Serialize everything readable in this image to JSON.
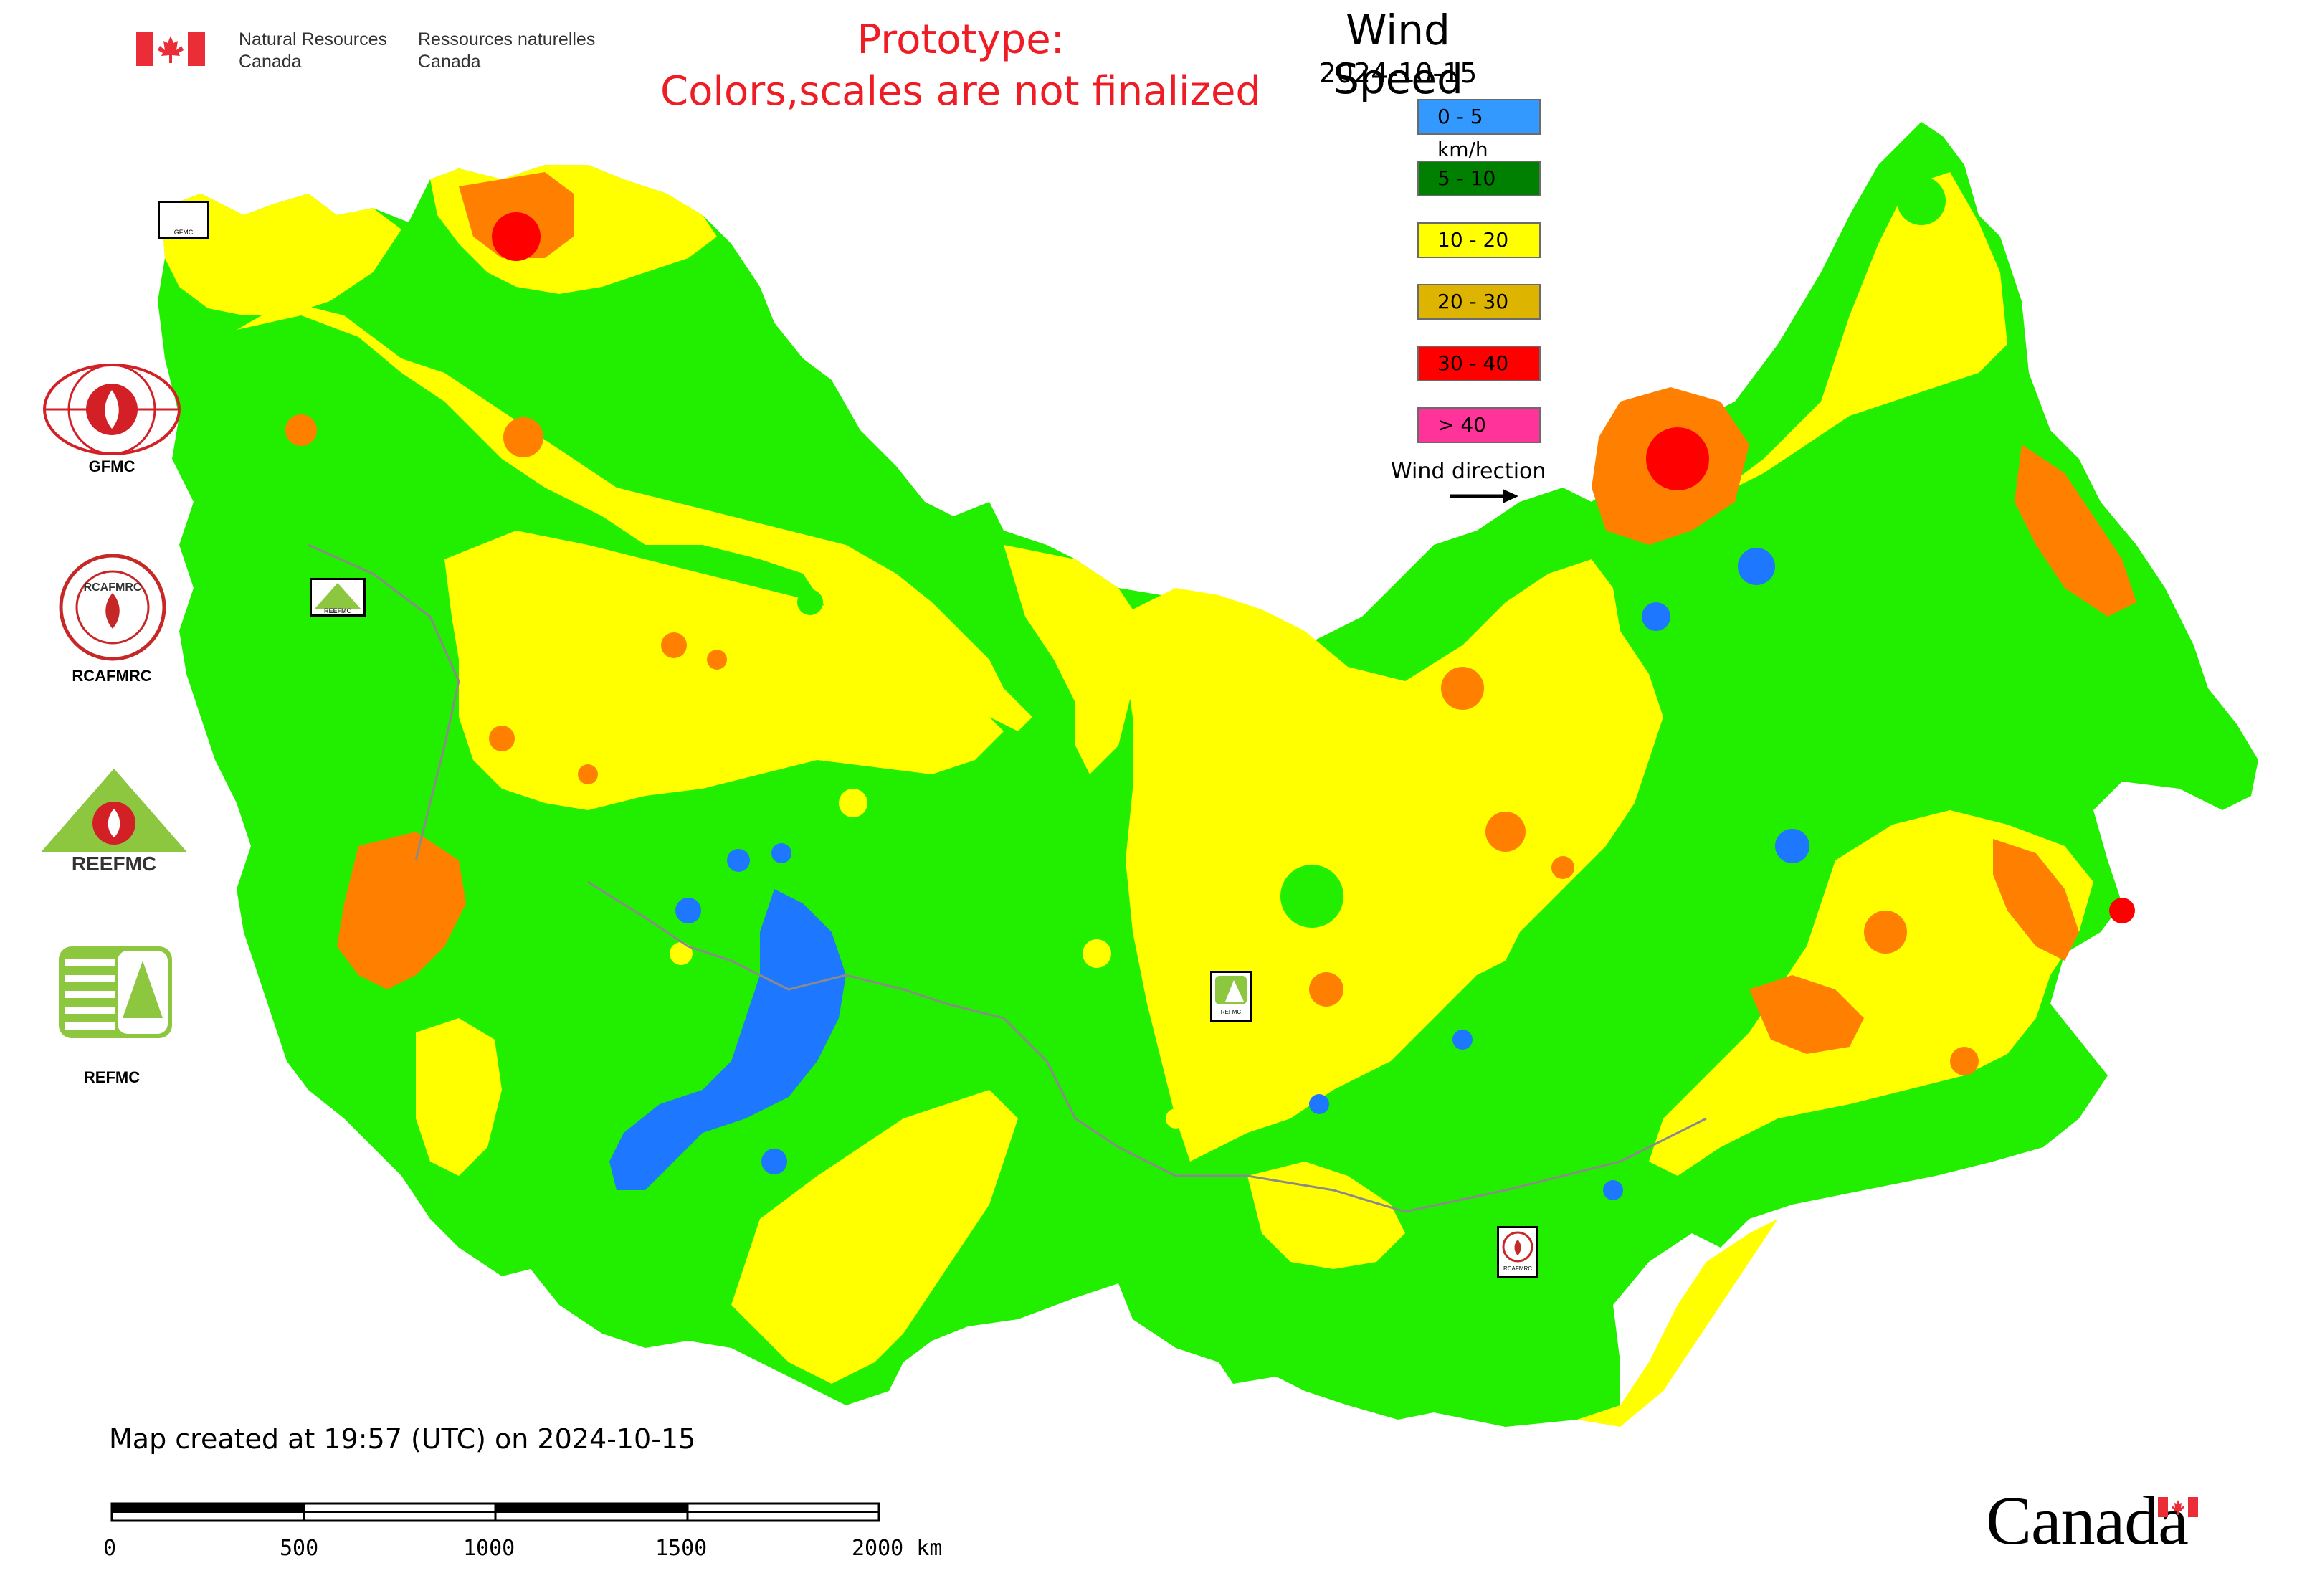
{
  "header": {
    "dept_en_line1": "Natural Resources",
    "dept_en_line2": "Canada",
    "dept_fr_line1": "Ressources naturelles",
    "dept_fr_line2": "Canada",
    "prototype_line1": "Prototype:",
    "prototype_line2": "Colors,scales are not finalized"
  },
  "legend": {
    "title": "Wind Speed",
    "date": "2024-10-15",
    "items": [
      {
        "label": "0 - 5 km/h",
        "color": "#3399ff"
      },
      {
        "label": "5 - 10",
        "color": "#008000"
      },
      {
        "label": "10 - 20",
        "color": "#ffff00"
      },
      {
        "label": "20 - 30",
        "color": "#ddb400"
      },
      {
        "label": "30 - 40",
        "color": "#ff0000"
      },
      {
        "label": "> 40",
        "color": "#ff3399"
      }
    ],
    "wind_direction_label": "Wind direction"
  },
  "map_colors": {
    "green": "#22ee00",
    "yellow": "#ffff00",
    "orange": "#ff8000",
    "blue": "#1e78ff",
    "red": "#ff0000",
    "boundary": "#8a8a8a"
  },
  "side_logos": [
    {
      "label": "GFMC",
      "icon": "gfmc-logo-icon"
    },
    {
      "label": "RCAFMRC",
      "icon": "rcafmrc-logo-icon"
    },
    {
      "label": "REEFMC",
      "icon": "reefmc-logo-icon"
    },
    {
      "label": "REFMC",
      "icon": "refmc-logo-icon"
    }
  ],
  "logo_texts": {
    "reefmc_text": "REEFMC",
    "rcafmrc_text": "RCAFMRC"
  },
  "map_markers": [
    {
      "label": "GFMC"
    },
    {
      "label": "REEFMC"
    },
    {
      "label": "REFMC"
    },
    {
      "label": "RCAFMRC"
    }
  ],
  "footer": {
    "created": "Map created at 19:57 (UTC) on 2024-10-15",
    "scale_ticks": [
      "0",
      "500",
      "1000",
      "1500",
      "2000 km"
    ],
    "wordmark": "Canada"
  }
}
